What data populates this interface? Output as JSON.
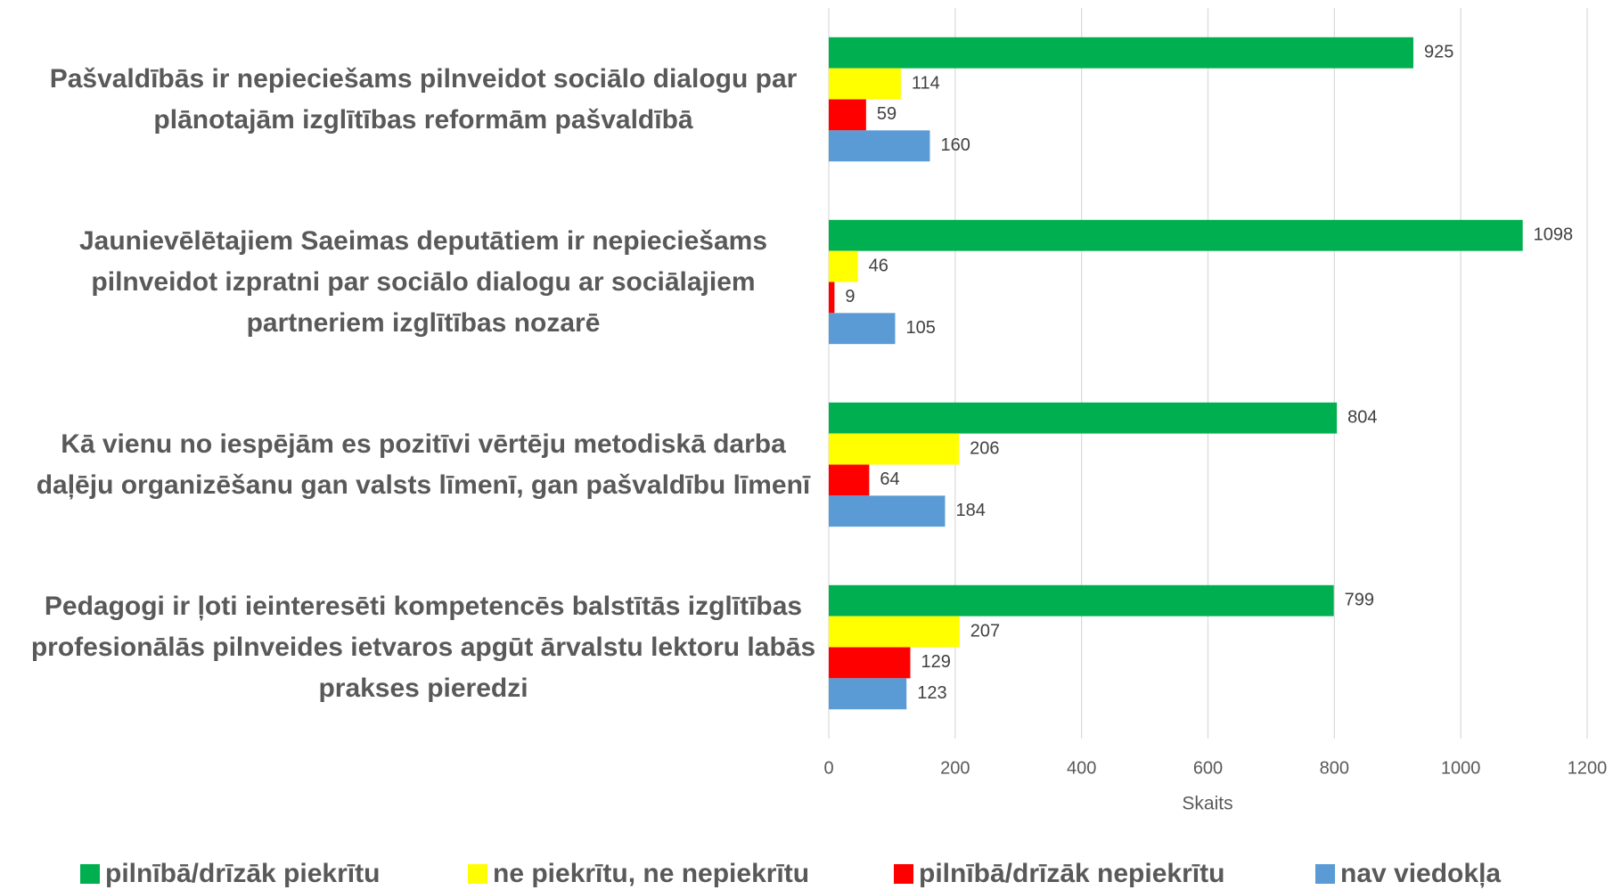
{
  "chart_data": {
    "type": "bar",
    "orientation": "horizontal",
    "categories": [
      "Pašvaldībās  ir nepieciešams pilnveidot sociālo dialogu par plānotajām izglītības reformām pašvaldībā",
      "Jaunievēlētajiem Saeimas deputātiem ir nepieciešams pilnveidot izpratni par sociālo dialogu ar sociālajiem partneriem izglītības nozarē",
      "Kā vienu no iespējām es pozitīvi vērtēju metodiskā darba daļēju organizēšanu gan valsts līmenī, gan pašvaldību līmenī",
      "Pedagogi ir ļoti ieinteresēti kompetencēs balstītās izglītības profesionālās pilnveides ietvaros apgūt ārvalstu lektoru labās prakses pieredzi"
    ],
    "series": [
      {
        "name": "pilnībā/drīzāk piekrītu",
        "color": "#00b050",
        "values": [
          925,
          1098,
          804,
          799
        ]
      },
      {
        "name": "ne piekrītu, ne nepiekrītu",
        "color": "#ffff00",
        "values": [
          114,
          46,
          206,
          207
        ]
      },
      {
        "name": "pilnībā/drīzāk nepiekrītu",
        "color": "#ff0000",
        "values": [
          59,
          9,
          64,
          129
        ]
      },
      {
        "name": "nav viedokļa",
        "color": "#5b9bd5",
        "values": [
          160,
          105,
          184,
          123
        ]
      }
    ],
    "xlabel": "Skaits",
    "xlim": [
      0,
      1200
    ],
    "xticks": [
      0,
      200,
      400,
      600,
      800,
      1000,
      1200
    ],
    "grid": true,
    "legend": "bottom"
  }
}
